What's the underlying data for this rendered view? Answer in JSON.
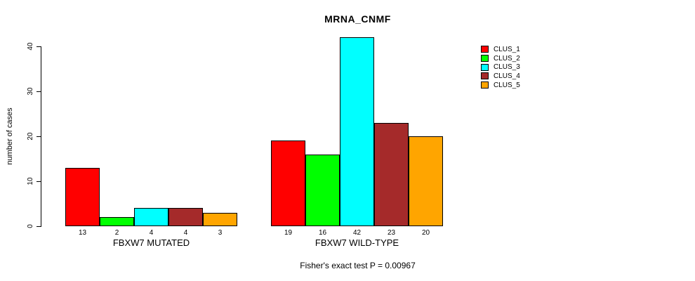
{
  "chart_data": {
    "type": "bar",
    "title": "MRNA_CNMF",
    "ylabel": "number of cases",
    "xlabel": "",
    "groups": [
      "FBXW7 MUTATED",
      "FBXW7 WILD-TYPE"
    ],
    "series": [
      {
        "name": "CLUS_1",
        "color": "#FF0000",
        "values": [
          13,
          19
        ]
      },
      {
        "name": "CLUS_2",
        "color": "#00FF00",
        "values": [
          2,
          16
        ]
      },
      {
        "name": "CLUS_3",
        "color": "#00FFFF",
        "values": [
          4,
          42
        ]
      },
      {
        "name": "CLUS_4",
        "color": "#A52A2A",
        "values": [
          4,
          23
        ]
      },
      {
        "name": "CLUS_5",
        "color": "#FFA500",
        "values": [
          3,
          20
        ]
      }
    ],
    "yticks": [
      0,
      10,
      20,
      30,
      40
    ],
    "ylim": [
      0,
      42
    ],
    "bar_value_labels": [
      [
        13,
        2,
        4,
        4,
        3
      ],
      [
        19,
        16,
        42,
        23,
        20
      ]
    ],
    "legend_position": "top-right",
    "grid": false,
    "annotation": "Fisher's exact test P = 0.00967"
  }
}
